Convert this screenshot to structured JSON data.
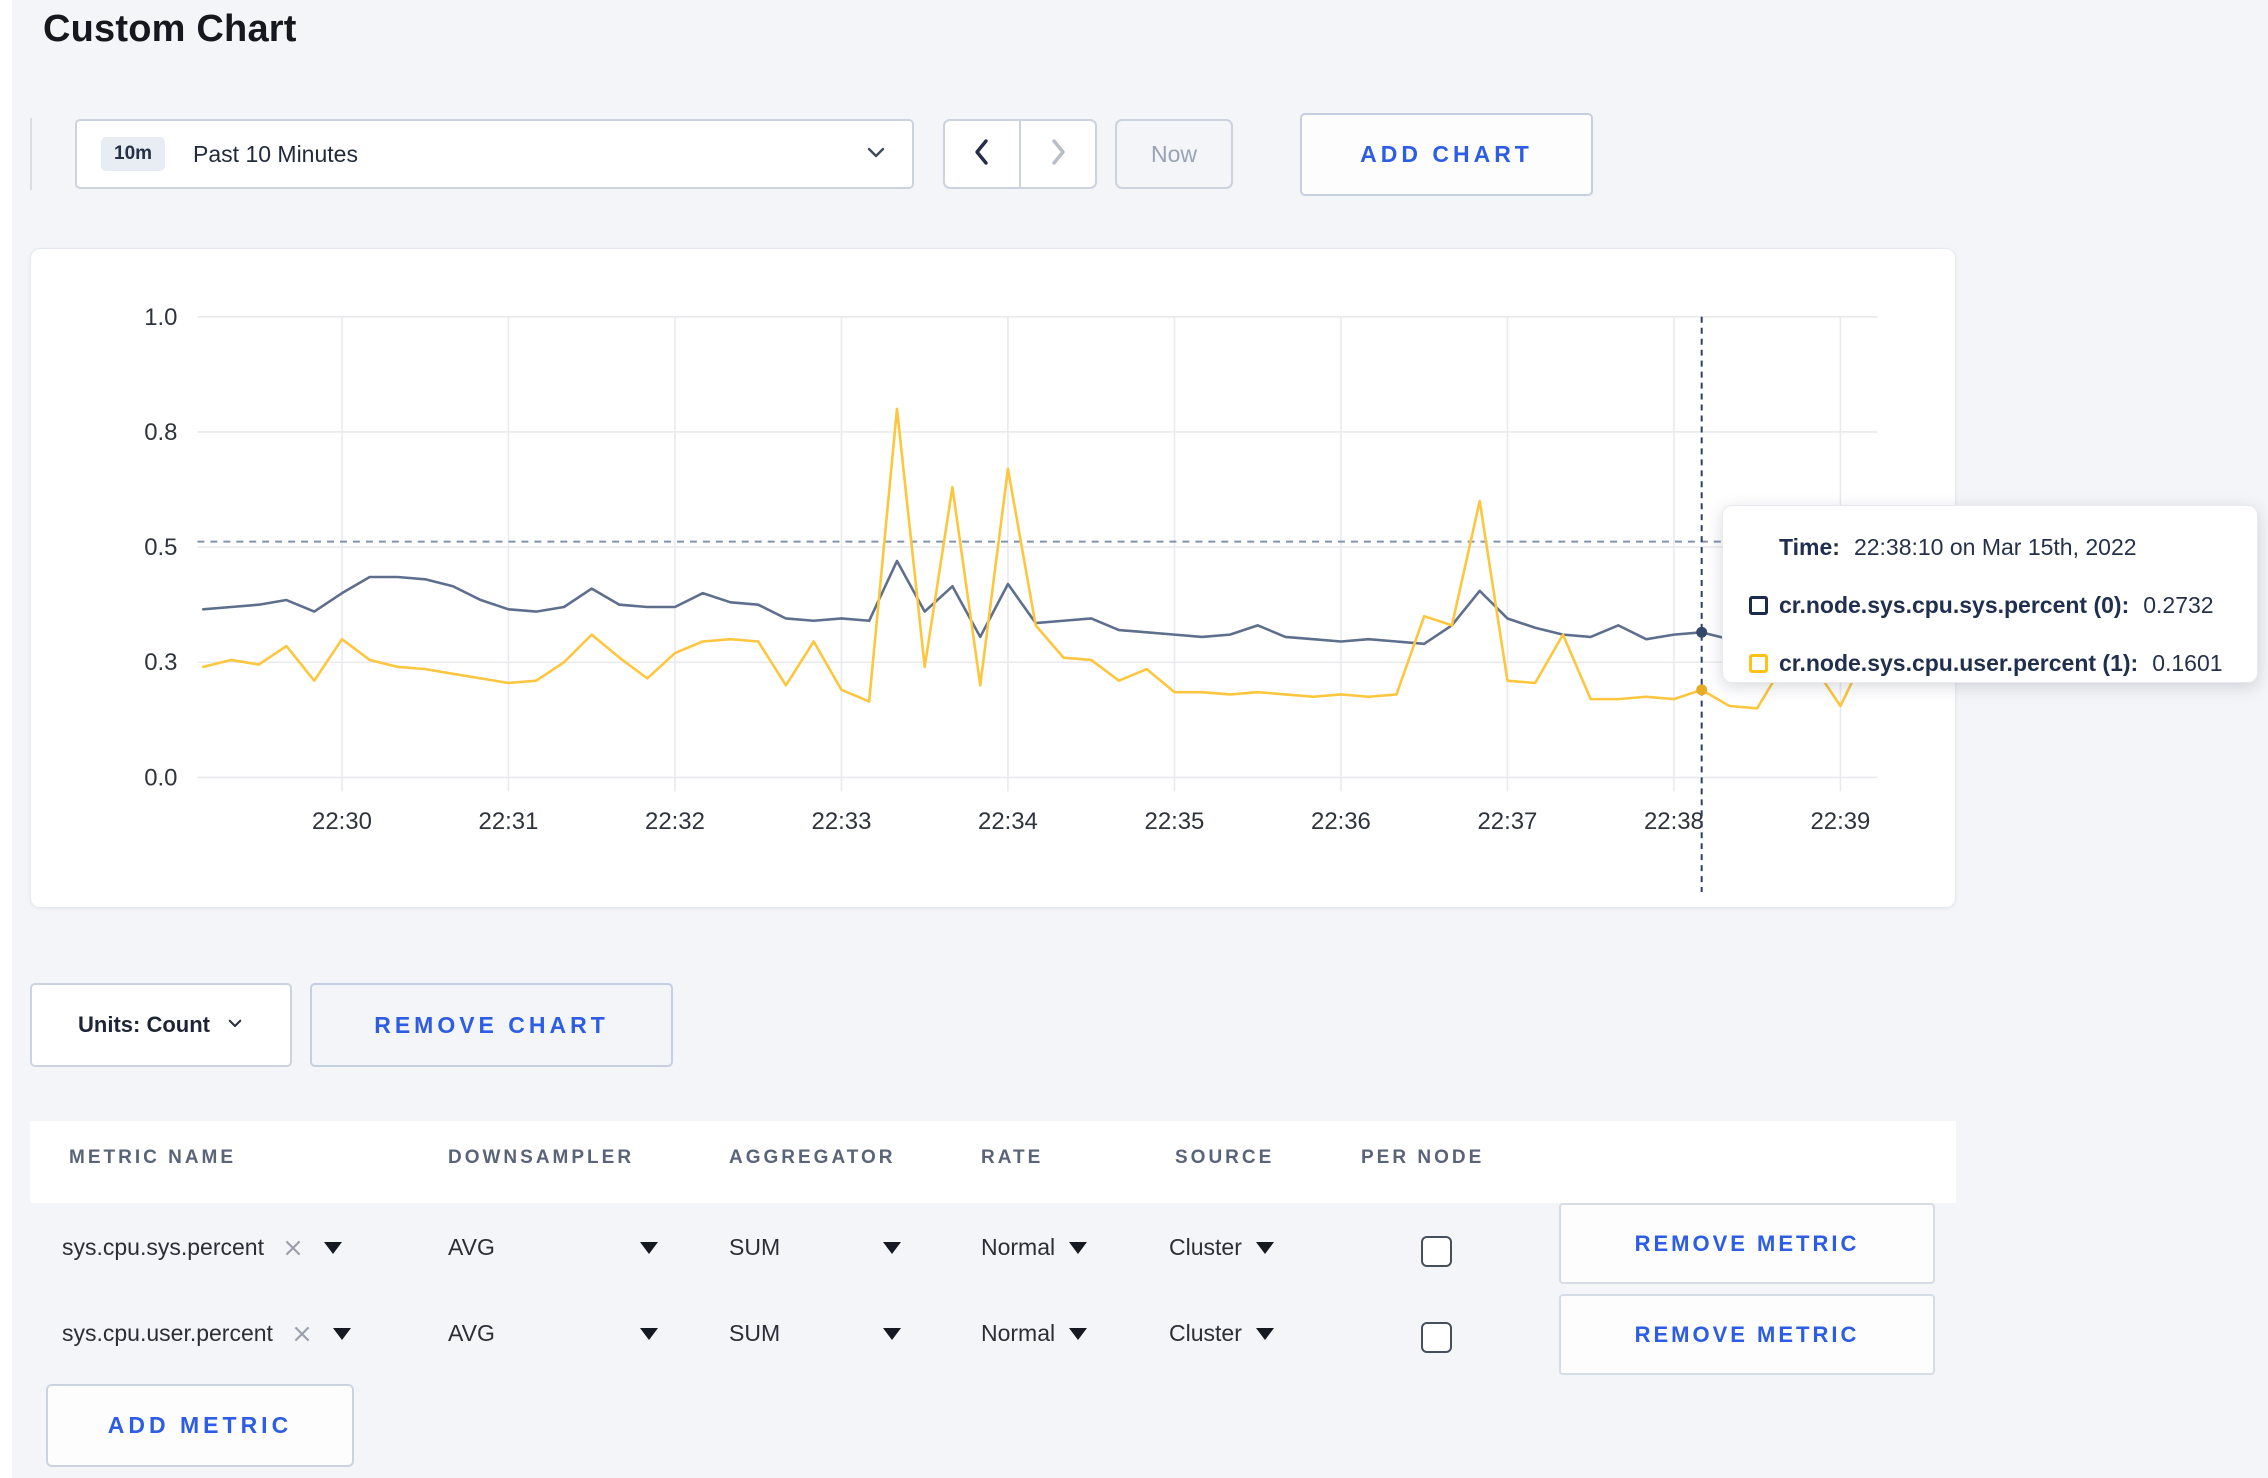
{
  "page": {
    "title": "Custom Chart",
    "background": "#f4f5f8",
    "accent_blue": "#2d5de4"
  },
  "toolbar": {
    "time_range": {
      "badge": "10m",
      "label": "Past 10 Minutes"
    },
    "now_label": "Now",
    "add_chart_label": "ADD CHART"
  },
  "chart_data": {
    "type": "line",
    "title": "",
    "xlabel": "",
    "ylabel": "",
    "ylim": [
      0,
      1
    ],
    "grid": true,
    "legend_position": "tooltip-only",
    "x_tick_labels": [
      "22:30",
      "22:31",
      "22:32",
      "22:33",
      "22:34",
      "22:35",
      "22:36",
      "22:37",
      "22:38",
      "22:39"
    ],
    "y_ticks": [
      {
        "value": 0,
        "label": "0.0"
      },
      {
        "value": 0.25,
        "label": "0.3"
      },
      {
        "value": 0.5,
        "label": "0.5"
      },
      {
        "value": 0.75,
        "label": "0.8"
      },
      {
        "value": 1,
        "label": "1.0"
      }
    ],
    "sample_interval_seconds": 10,
    "start_offset_seconds": -50,
    "dashed_reference_value": 0.512,
    "crosshair": {
      "offset_seconds": 490,
      "time_label": "22:38:10"
    },
    "series": [
      {
        "name": "cr.node.sys.cpu.sys.percent (0)",
        "color": "#5e6f8d",
        "marker_color": "#35486b",
        "marker_value": 0.315,
        "values": [
          0.365,
          0.37,
          0.375,
          0.385,
          0.36,
          0.4,
          0.435,
          0.435,
          0.43,
          0.415,
          0.385,
          0.365,
          0.36,
          0.37,
          0.41,
          0.375,
          0.37,
          0.37,
          0.4,
          0.38,
          0.375,
          0.345,
          0.34,
          0.345,
          0.34,
          0.47,
          0.36,
          0.415,
          0.305,
          0.42,
          0.335,
          0.34,
          0.345,
          0.32,
          0.315,
          0.31,
          0.305,
          0.31,
          0.33,
          0.305,
          0.3,
          0.295,
          0.3,
          0.295,
          0.29,
          0.33,
          0.405,
          0.345,
          0.325,
          0.31,
          0.305,
          0.33,
          0.3,
          0.31,
          0.315,
          0.3,
          0.295,
          0.29,
          0.3,
          0.295,
          0.26
        ]
      },
      {
        "name": "cr.node.sys.cpu.user.percent (1)",
        "color": "#fcc63e",
        "marker_color": "#e8ab25",
        "marker_value": 0.19,
        "values": [
          0.24,
          0.255,
          0.245,
          0.285,
          0.21,
          0.3,
          0.255,
          0.24,
          0.235,
          0.225,
          0.215,
          0.205,
          0.21,
          0.25,
          0.31,
          0.26,
          0.215,
          0.27,
          0.295,
          0.3,
          0.295,
          0.2,
          0.295,
          0.19,
          0.165,
          0.8,
          0.24,
          0.63,
          0.2,
          0.67,
          0.33,
          0.26,
          0.255,
          0.21,
          0.235,
          0.185,
          0.185,
          0.18,
          0.185,
          0.18,
          0.175,
          0.18,
          0.175,
          0.18,
          0.35,
          0.33,
          0.6,
          0.21,
          0.205,
          0.31,
          0.17,
          0.17,
          0.175,
          0.17,
          0.19,
          0.155,
          0.15,
          0.25,
          0.245,
          0.155,
          0.28
        ]
      }
    ]
  },
  "tooltip": {
    "time_label": "Time:",
    "time_value": "22:38:10 on Mar 15th, 2022",
    "rows": [
      {
        "swatch_color": "#1b2b4d",
        "label": "cr.node.sys.cpu.sys.percent (0):",
        "value": "0.2732"
      },
      {
        "swatch_color": "#fdc215",
        "label": "cr.node.sys.cpu.user.percent (1):",
        "value": "0.1601"
      }
    ]
  },
  "chart_footer": {
    "units_label": "Units: Count",
    "remove_chart_label": "REMOVE CHART"
  },
  "metrics_table": {
    "headers": [
      "METRIC NAME",
      "DOWNSAMPLER",
      "AGGREGATOR",
      "RATE",
      "SOURCE",
      "PER NODE"
    ],
    "rows": [
      {
        "metric": "sys.cpu.sys.percent",
        "downsampler": "AVG",
        "aggregator": "SUM",
        "rate": "Normal",
        "source": "Cluster",
        "per_node_checked": false,
        "remove_label": "REMOVE METRIC"
      },
      {
        "metric": "sys.cpu.user.percent",
        "downsampler": "AVG",
        "aggregator": "SUM",
        "rate": "Normal",
        "source": "Cluster",
        "per_node_checked": false,
        "remove_label": "REMOVE METRIC"
      }
    ],
    "add_metric_label": "ADD METRIC"
  }
}
